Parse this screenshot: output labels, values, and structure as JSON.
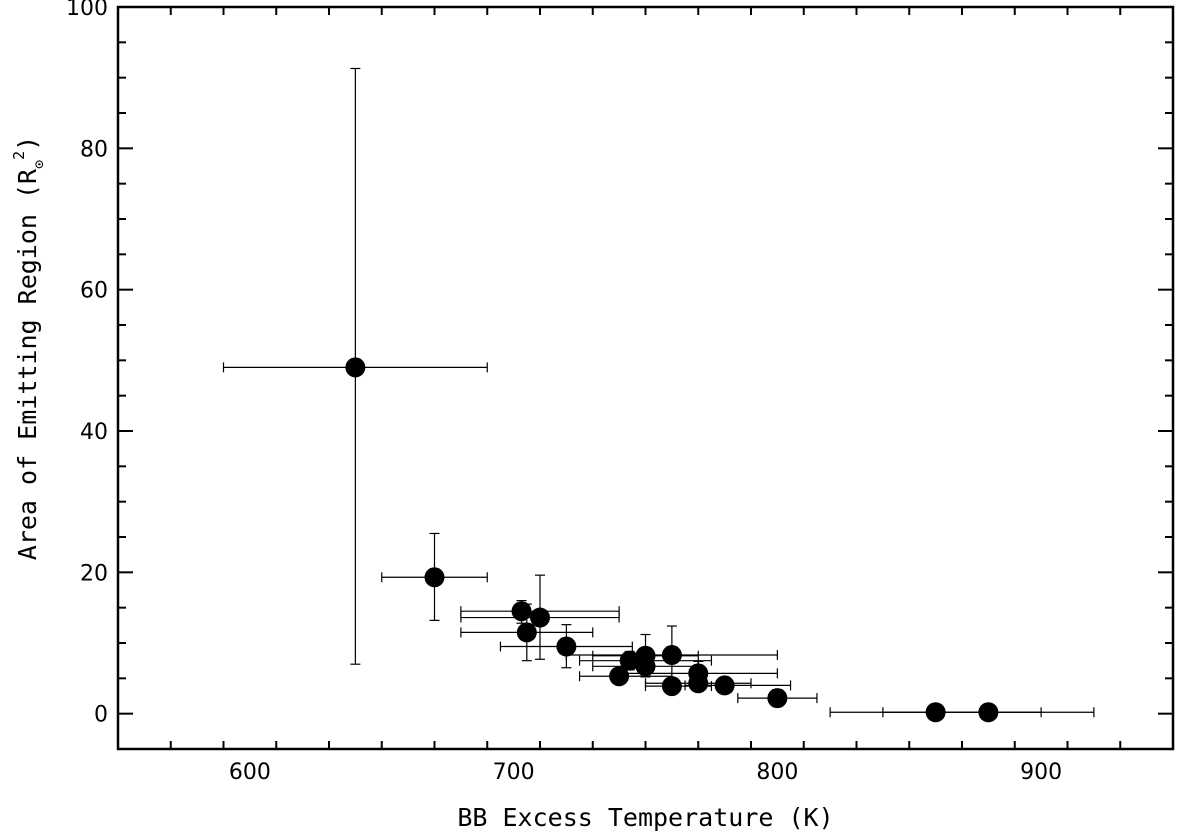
{
  "chart_data": {
    "type": "scatter",
    "title": "",
    "xlabel": "BB Excess Temperature (K)",
    "ylabel": {
      "text": "Area of Emitting Region (R",
      "subscript": "⊙",
      "superscript": "2",
      "close": ")"
    },
    "xlim": [
      550,
      950
    ],
    "ylim": [
      -5,
      100
    ],
    "x_ticks": [
      600,
      700,
      800,
      900
    ],
    "y_ticks": [
      0,
      20,
      40,
      60,
      80,
      100
    ],
    "grid": false,
    "legend": "none",
    "colors": {
      "marker": "#000000",
      "errorbar": "#000000",
      "axes": "#000000"
    },
    "points": [
      {
        "x": 640,
        "y": 49.0,
        "x_lo": 590,
        "x_hi": 690,
        "y_lo": 7.0,
        "y_hi": 91.3
      },
      {
        "x": 670,
        "y": 19.3,
        "x_lo": 650,
        "x_hi": 690,
        "y_lo": 13.2,
        "y_hi": 25.5
      },
      {
        "x": 703,
        "y": 14.5,
        "x_lo": 680,
        "x_hi": 740,
        "y_lo": 12.8,
        "y_hi": 16.0
      },
      {
        "x": 710,
        "y": 13.6,
        "x_lo": 680,
        "x_hi": 740,
        "y_lo": 7.7,
        "y_hi": 19.6
      },
      {
        "x": 705,
        "y": 11.5,
        "x_lo": 680,
        "x_hi": 730,
        "y_lo": 7.5,
        "y_hi": 15.5
      },
      {
        "x": 720,
        "y": 9.5,
        "x_lo": 695,
        "x_hi": 745,
        "y_lo": 6.5,
        "y_hi": 12.6
      },
      {
        "x": 744,
        "y": 7.5,
        "x_lo": 725,
        "x_hi": 775,
        "y_lo": 6.2,
        "y_hi": 8.8
      },
      {
        "x": 750,
        "y": 8.2,
        "x_lo": 730,
        "x_hi": 770,
        "y_lo": 5.5,
        "y_hi": 11.2
      },
      {
        "x": 750,
        "y": 6.7,
        "x_lo": 730,
        "x_hi": 770,
        "y_lo": 5.2,
        "y_hi": 8.2
      },
      {
        "x": 760,
        "y": 8.3,
        "x_lo": 720,
        "x_hi": 800,
        "y_lo": 4.2,
        "y_hi": 12.4
      },
      {
        "x": 770,
        "y": 5.7,
        "x_lo": 740,
        "x_hi": 800,
        "y_lo": 4.0,
        "y_hi": 7.4
      },
      {
        "x": 740,
        "y": 5.3,
        "x_lo": 725,
        "x_hi": 760,
        "y_lo": 4.6,
        "y_hi": 6.0
      },
      {
        "x": 760,
        "y": 3.9,
        "x_lo": 750,
        "x_hi": 775,
        "y_lo": 3.3,
        "y_hi": 4.5
      },
      {
        "x": 770,
        "y": 4.3,
        "x_lo": 750,
        "x_hi": 790,
        "y_lo": 3.5,
        "y_hi": 5.1
      },
      {
        "x": 780,
        "y": 4.0,
        "x_lo": 765,
        "x_hi": 805,
        "y_lo": 3.3,
        "y_hi": 4.7
      },
      {
        "x": 800,
        "y": 2.2,
        "x_lo": 785,
        "x_hi": 815,
        "y_lo": 1.0,
        "y_hi": 3.4
      },
      {
        "x": 860,
        "y": 0.2,
        "x_lo": 820,
        "x_hi": 900,
        "y_lo": 0.0,
        "y_hi": 0.4
      },
      {
        "x": 880,
        "y": 0.2,
        "x_lo": 840,
        "x_hi": 920,
        "y_lo": 0.0,
        "y_hi": 0.4
      }
    ]
  }
}
